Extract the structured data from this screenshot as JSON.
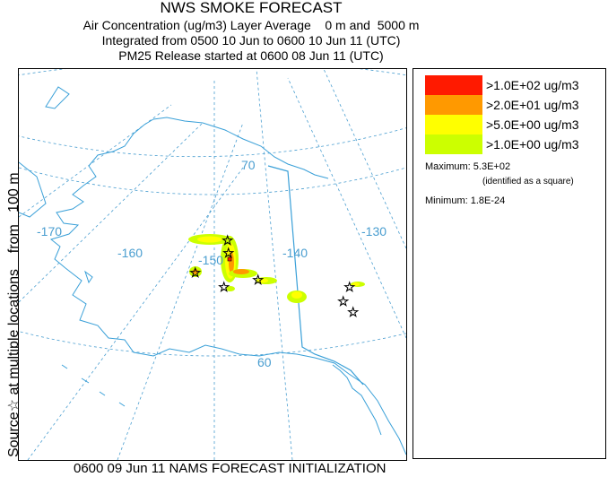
{
  "header": {
    "title": "NWS SMOKE FORECAST",
    "line1": "Air Concentration (ug/m3) Layer Average    0 m and  5000 m",
    "line2": "Integrated from 0500 10 Jun to 0600 10 Jun 11 (UTC)",
    "line3": "PM25 Release started at 0600 08 Jun 11 (UTC)"
  },
  "side_label": "Source☆ at multiple locations    from   100 m",
  "footer": "0600 09 Jun 11 NAMS FORECAST INITIALIZATION",
  "map": {
    "labels": {
      "lon_170": "-170",
      "lon_160": "-160",
      "lon_150": "-150",
      "lon_140": "-140",
      "lon_130": "-130",
      "lat_70": "70",
      "lat_60": "60"
    },
    "grid_color": "#4a9ed0"
  },
  "legend": {
    "items": [
      {
        "label": ">1.0E+02 ug/m3",
        "color": "#ff1a00"
      },
      {
        "label": ">2.0E+01 ug/m3",
        "color": "#ff9900"
      },
      {
        "label": ">5.0E+00 ug/m3",
        "color": "#ffff00"
      },
      {
        "label": ">1.0E+00 ug/m3",
        "color": "#ccff00"
      }
    ],
    "maximum": "Maximum: 5.3E+02",
    "max_note": "(identified as a square)",
    "minimum": "Minimum: 1.8E-24"
  }
}
